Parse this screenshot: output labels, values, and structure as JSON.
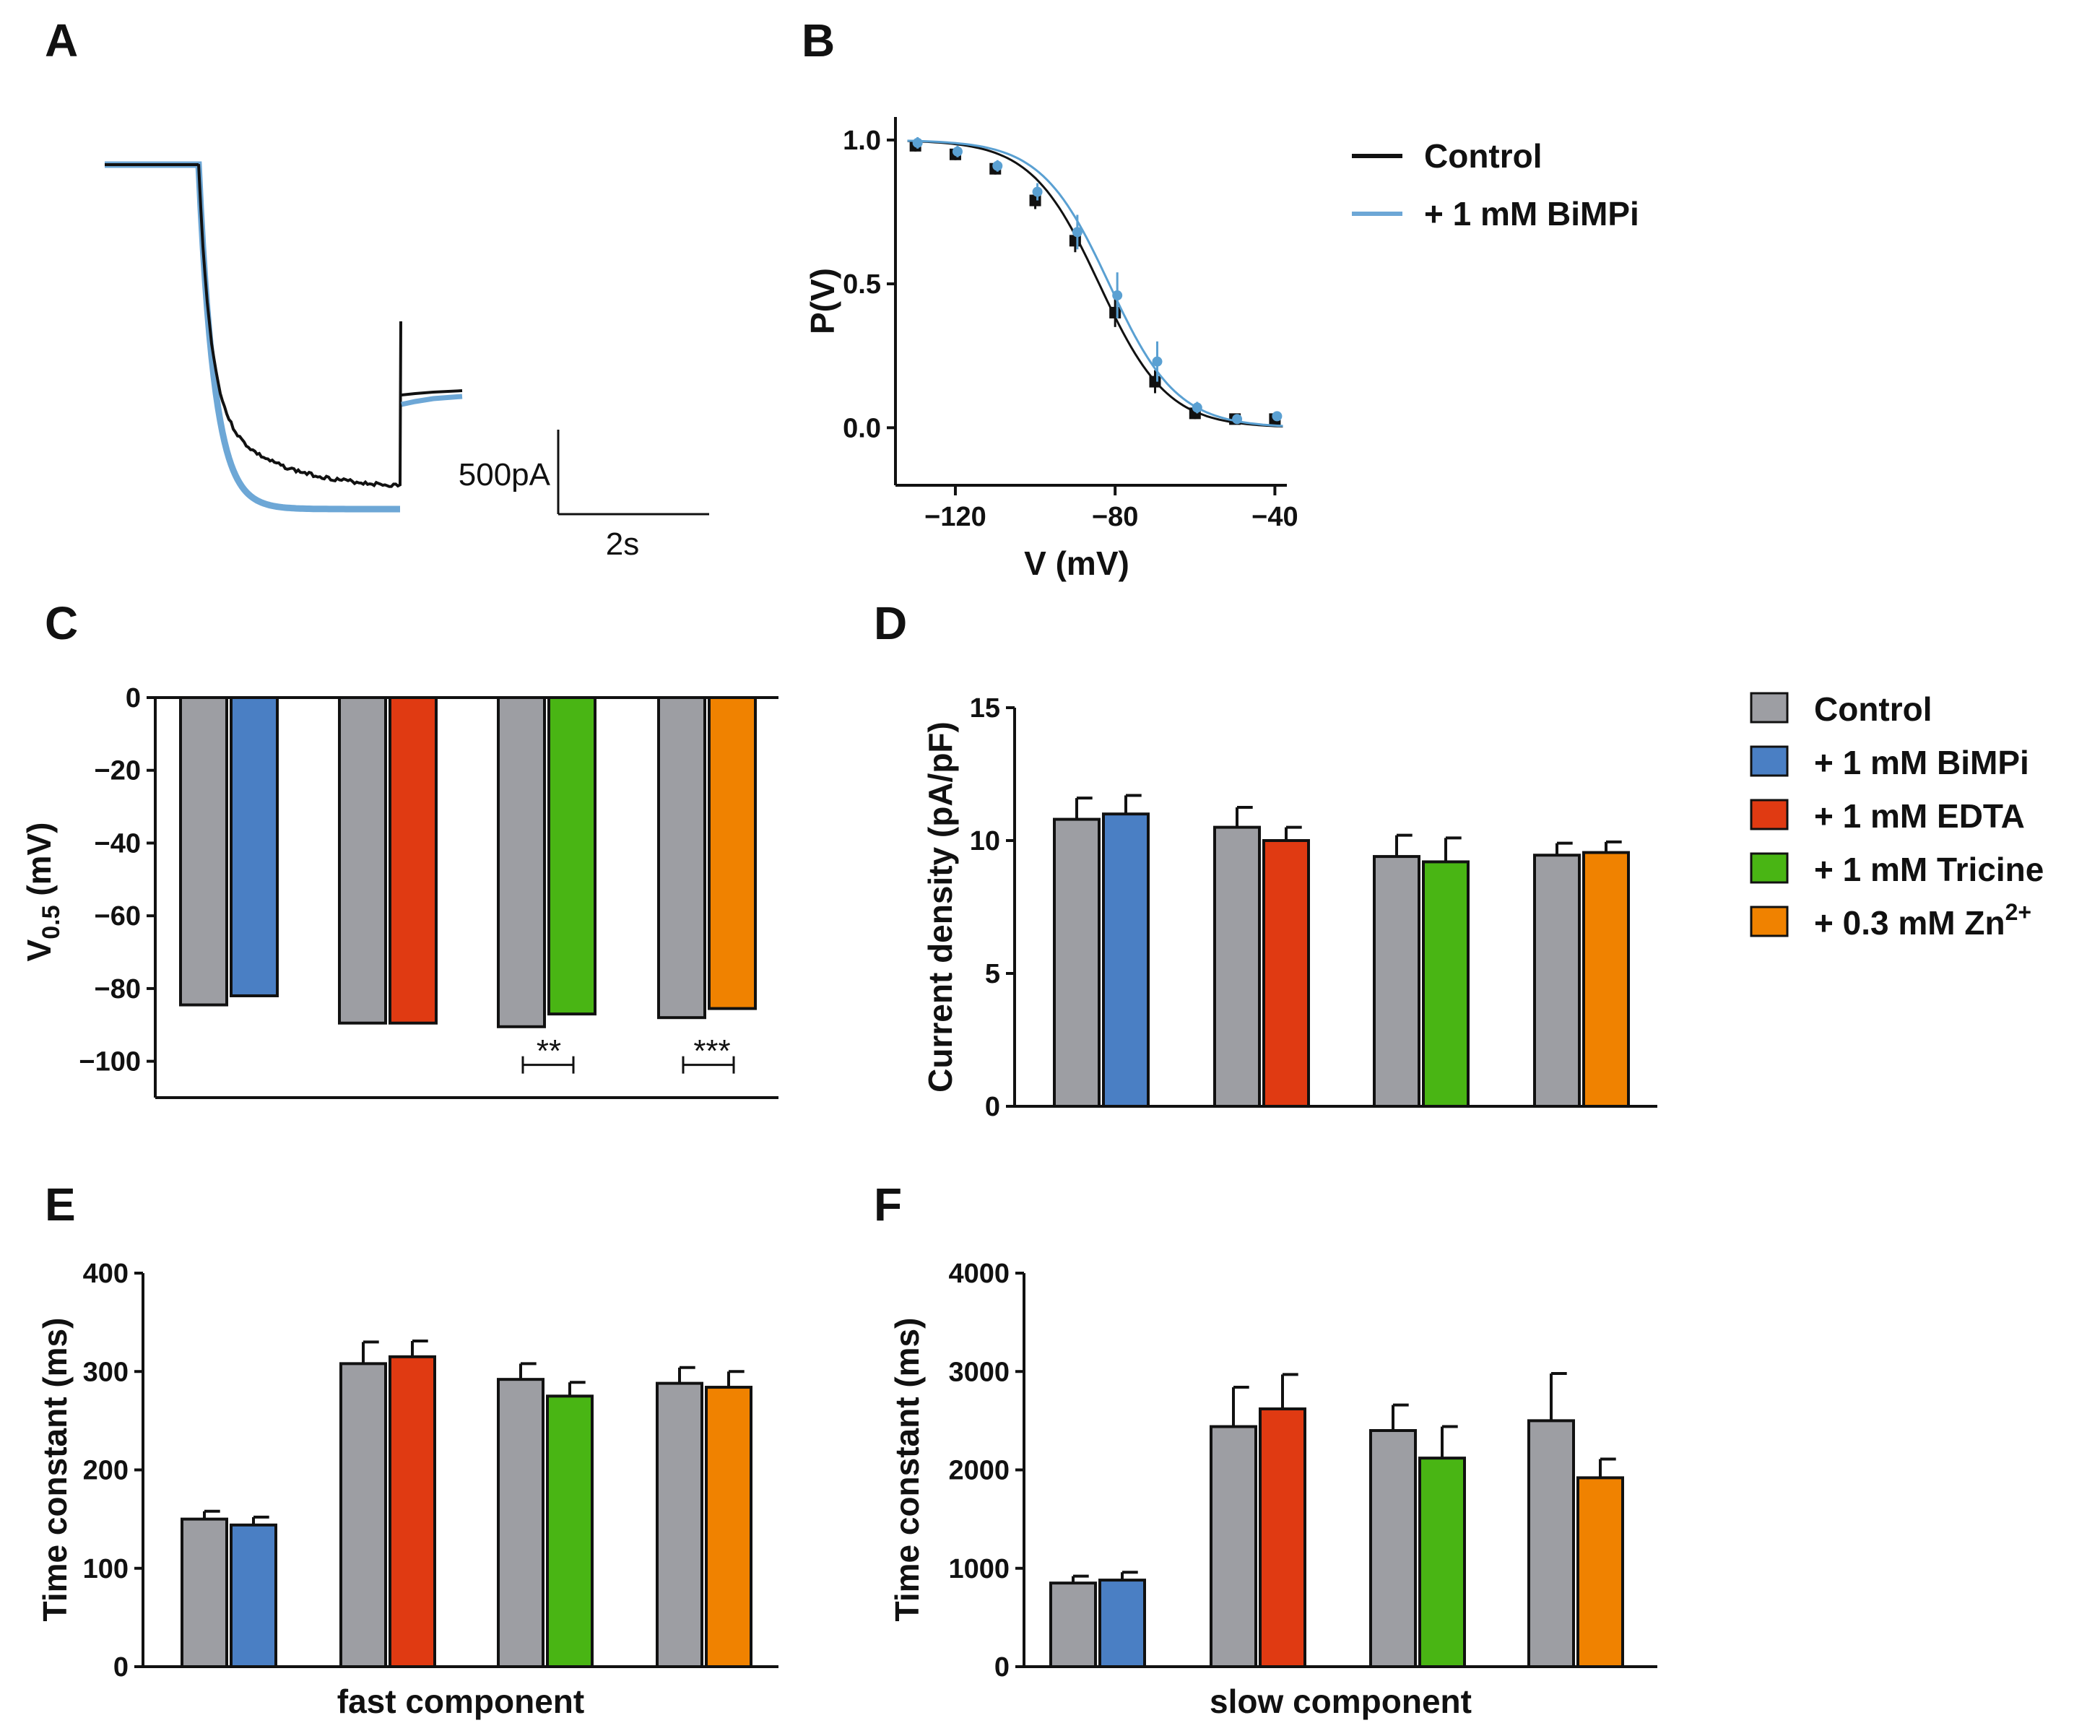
{
  "colors": {
    "control": "#9d9ea3",
    "bimpi": "#4a7fc4",
    "edta": "#e03a12",
    "tricine": "#49b514",
    "zn": "#f08200",
    "trace_control": "#111111",
    "trace_bimpi": "#6da7d6",
    "axis": "#111111"
  },
  "panels": {
    "A": "A",
    "B": "B",
    "C": "C",
    "D": "D",
    "E": "E",
    "F": "F"
  },
  "panelA": {
    "scale_current": "500pA",
    "scale_time": "2s"
  },
  "legendB": {
    "control": "Control",
    "bimpi": "+ 1 mM BiMPi"
  },
  "legendD": {
    "control": "Control",
    "bimpi": "+ 1 mM BiMPi",
    "edta": "+ 1 mM EDTA",
    "tricine": "+ 1 mM Tricine",
    "zn_prefix": "+ 0.3 mM Zn",
    "zn_sup": "2+"
  },
  "sig": {
    "tricine": "**",
    "zn": "***"
  },
  "chart_data": [
    {
      "panel": "B",
      "type": "scatter",
      "title": "",
      "xlabel": "V (mV)",
      "ylabel": "P(V)",
      "xlim": [
        -135,
        -37
      ],
      "ylim": [
        -0.2,
        1.08
      ],
      "xticks": [
        -120,
        -80,
        -40
      ],
      "xtick_labels": [
        "−120",
        "−80",
        "−40"
      ],
      "yticks": [
        0.0,
        0.5,
        1.0
      ],
      "ytick_labels": [
        "0.0",
        "0.5",
        "1.0"
      ],
      "series": [
        {
          "name": "Control",
          "x": [
            -130,
            -120,
            -110,
            -100,
            -90,
            -80,
            -70,
            -60,
            -50,
            -40
          ],
          "y": [
            0.98,
            0.95,
            0.9,
            0.79,
            0.65,
            0.4,
            0.16,
            0.05,
            0.03,
            0.03
          ],
          "err": [
            0.02,
            0.02,
            0.02,
            0.03,
            0.04,
            0.05,
            0.04,
            0.02,
            0.01,
            0.01
          ],
          "fit_v_half": -84,
          "fit_slope": 8.5
        },
        {
          "name": "+ 1 mM BiMPi",
          "x": [
            -130,
            -120,
            -110,
            -100,
            -90,
            -80,
            -70,
            -60,
            -50,
            -40
          ],
          "y": [
            0.99,
            0.96,
            0.91,
            0.82,
            0.68,
            0.46,
            0.23,
            0.07,
            0.03,
            0.04
          ],
          "err": [
            0.02,
            0.02,
            0.02,
            0.03,
            0.06,
            0.08,
            0.07,
            0.02,
            0.01,
            0.01
          ],
          "fit_v_half": -81.5,
          "fit_slope": 8.5
        }
      ]
    },
    {
      "panel": "C",
      "type": "bar",
      "ylabel": "V0.5 (mV)",
      "ylabel_main": "V",
      "ylabel_sub": "0.5",
      "ylabel_unit": " (mV)",
      "ylim": [
        -110,
        0
      ],
      "yticks": [
        0,
        -20,
        -40,
        -60,
        -80,
        -100
      ],
      "ytick_labels": [
        "0",
        "−20",
        "−40",
        "−60",
        "−80",
        "−100"
      ],
      "groups": [
        {
          "bars": [
            {
              "name": "Control",
              "value": -84.5
            },
            {
              "name": "+ 1 mM BiMPi",
              "value": -82
            }
          ]
        },
        {
          "bars": [
            {
              "name": "Control",
              "value": -89.5
            },
            {
              "name": "+ 1 mM EDTA",
              "value": -89.5
            }
          ]
        },
        {
          "bars": [
            {
              "name": "Control",
              "value": -90.5
            },
            {
              "name": "+ 1 mM Tricine",
              "value": -87
            }
          ],
          "sig": "**"
        },
        {
          "bars": [
            {
              "name": "Control",
              "value": -88
            },
            {
              "name": "+ 0.3 mM Zn2+",
              "value": -85.5
            }
          ],
          "sig": "***"
        }
      ]
    },
    {
      "panel": "D",
      "type": "bar",
      "ylabel": "Current density (pA/pF)",
      "ylim": [
        0,
        15
      ],
      "yticks": [
        0,
        5,
        10,
        15
      ],
      "ytick_labels": [
        "0",
        "5",
        "10",
        "15"
      ],
      "groups": [
        {
          "bars": [
            {
              "name": "Control",
              "value": 10.8,
              "err": 0.8
            },
            {
              "name": "+ 1 mM BiMPi",
              "value": 11.0,
              "err": 0.7
            }
          ]
        },
        {
          "bars": [
            {
              "name": "Control",
              "value": 10.5,
              "err": 0.75
            },
            {
              "name": "+ 1 mM EDTA",
              "value": 10.0,
              "err": 0.5
            }
          ]
        },
        {
          "bars": [
            {
              "name": "Control",
              "value": 9.4,
              "err": 0.8
            },
            {
              "name": "+ 1 mM Tricine",
              "value": 9.2,
              "err": 0.9
            }
          ]
        },
        {
          "bars": [
            {
              "name": "Control",
              "value": 9.45,
              "err": 0.45
            },
            {
              "name": "+ 0.3 mM Zn2+",
              "value": 9.55,
              "err": 0.4
            }
          ]
        }
      ]
    },
    {
      "panel": "E",
      "type": "bar",
      "ylabel": "Time constant (ms)",
      "xlabel": "fast component",
      "ylim": [
        0,
        400
      ],
      "yticks": [
        0,
        100,
        200,
        300,
        400
      ],
      "ytick_labels": [
        "0",
        "100",
        "200",
        "300",
        "400"
      ],
      "groups": [
        {
          "bars": [
            {
              "name": "Control",
              "value": 150,
              "err": 8
            },
            {
              "name": "+ 1 mM BiMPi",
              "value": 144,
              "err": 8
            }
          ]
        },
        {
          "bars": [
            {
              "name": "Control",
              "value": 308,
              "err": 22
            },
            {
              "name": "+ 1 mM EDTA",
              "value": 315,
              "err": 16
            }
          ]
        },
        {
          "bars": [
            {
              "name": "Control",
              "value": 292,
              "err": 16
            },
            {
              "name": "+ 1 mM Tricine",
              "value": 275,
              "err": 14
            }
          ]
        },
        {
          "bars": [
            {
              "name": "Control",
              "value": 288,
              "err": 16
            },
            {
              "name": "+ 0.3 mM Zn2+",
              "value": 284,
              "err": 16
            }
          ]
        }
      ]
    },
    {
      "panel": "F",
      "type": "bar",
      "ylabel": "Time constant (ms)",
      "xlabel": "slow component",
      "ylim": [
        0,
        4000
      ],
      "yticks": [
        0,
        1000,
        2000,
        3000,
        4000
      ],
      "ytick_labels": [
        "0",
        "1000",
        "2000",
        "3000",
        "4000"
      ],
      "groups": [
        {
          "bars": [
            {
              "name": "Control",
              "value": 850,
              "err": 70
            },
            {
              "name": "+ 1 mM BiMPi",
              "value": 880,
              "err": 80
            }
          ]
        },
        {
          "bars": [
            {
              "name": "Control",
              "value": 2440,
              "err": 400
            },
            {
              "name": "+ 1 mM EDTA",
              "value": 2620,
              "err": 350
            }
          ]
        },
        {
          "bars": [
            {
              "name": "Control",
              "value": 2400,
              "err": 260
            },
            {
              "name": "+ 1 mM Tricine",
              "value": 2120,
              "err": 320
            }
          ]
        },
        {
          "bars": [
            {
              "name": "Control",
              "value": 2500,
              "err": 480
            },
            {
              "name": "+ 0.3 mM Zn2+",
              "value": 1920,
              "err": 190
            }
          ]
        }
      ]
    }
  ]
}
